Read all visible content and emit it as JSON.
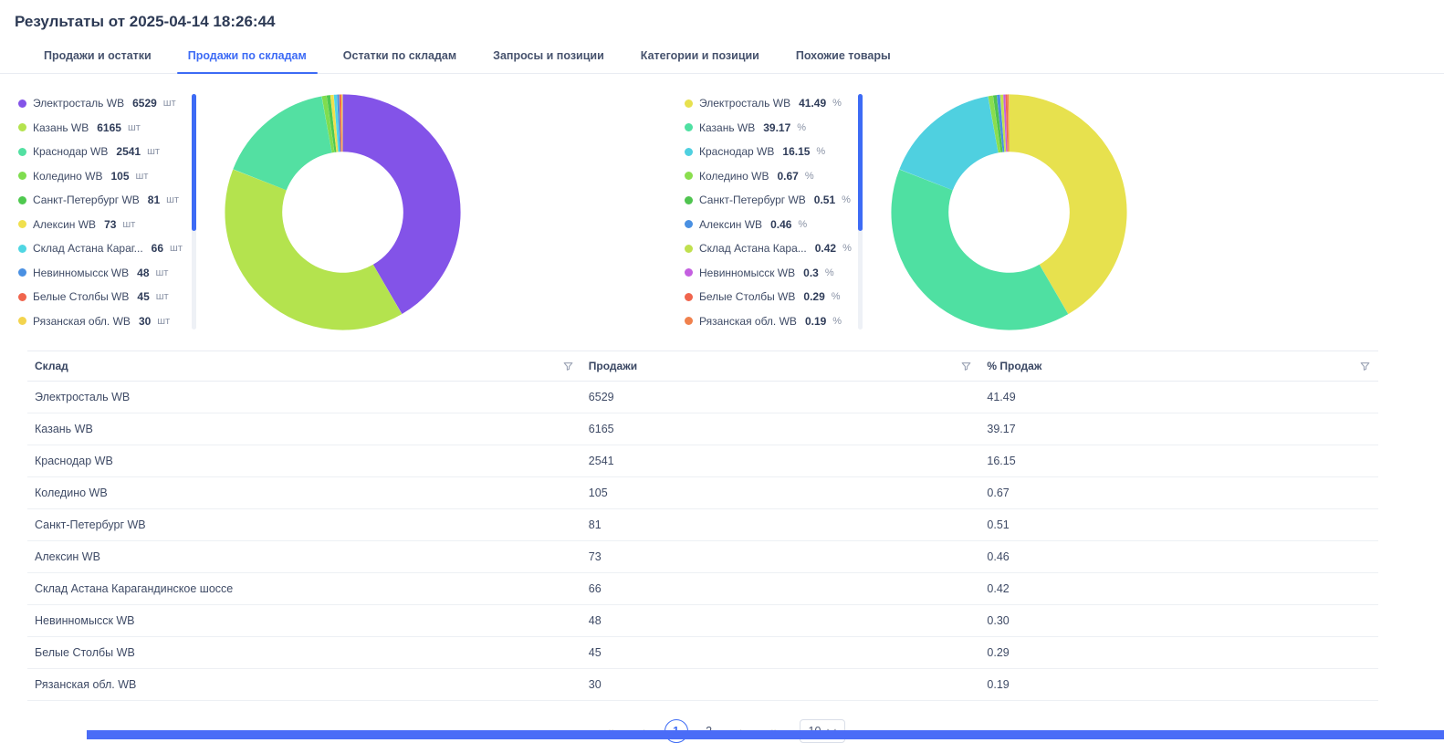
{
  "header": {
    "title": "Результаты от 2025-04-14 18:26:44"
  },
  "tabs": [
    {
      "label": "Продажи и остатки",
      "active": false
    },
    {
      "label": "Продажи по складам",
      "active": true
    },
    {
      "label": "Остатки по складам",
      "active": false
    },
    {
      "label": "Запросы и позиции",
      "active": false
    },
    {
      "label": "Категории и позиции",
      "active": false
    },
    {
      "label": "Похожие товары",
      "active": false
    }
  ],
  "colors": {
    "accent": "#3d6bf5",
    "footer_bar": "#4a6cf7"
  },
  "chart_data": [
    {
      "type": "pie",
      "variant": "donut",
      "legend_position": "left",
      "unit": "шт",
      "items": [
        {
          "label": "Электросталь WB",
          "display": "6529",
          "value": 6529,
          "color": "#8353e8"
        },
        {
          "label": "Казань WB",
          "display": "6165",
          "value": 6165,
          "color": "#b4e34e"
        },
        {
          "label": "Краснодар WB",
          "display": "2541",
          "value": 2541,
          "color": "#53e0a2"
        },
        {
          "label": "Коледино WB",
          "display": "105",
          "value": 105,
          "color": "#7fdd4f"
        },
        {
          "label": "Санкт-Петербург WB",
          "display": "81",
          "value": 81,
          "color": "#4fc94f"
        },
        {
          "label": "Алексин WB",
          "display": "73",
          "value": 73,
          "color": "#f0e04e"
        },
        {
          "label": "Склад Астана Караг...",
          "display": "66",
          "value": 66,
          "color": "#4fd6e3"
        },
        {
          "label": "Невинномысск WB",
          "display": "48",
          "value": 48,
          "color": "#4a90e2"
        },
        {
          "label": "Белые Столбы WB",
          "display": "45",
          "value": 45,
          "color": "#f0654d"
        },
        {
          "label": "Рязанская обл. WB",
          "display": "30",
          "value": 30,
          "color": "#f3d44e"
        }
      ]
    },
    {
      "type": "pie",
      "variant": "donut",
      "legend_position": "left",
      "unit": "%",
      "items": [
        {
          "label": "Электросталь WB",
          "display": "41.49",
          "value": 41.49,
          "color": "#e7e14e"
        },
        {
          "label": "Казань WB",
          "display": "39.17",
          "value": 39.17,
          "color": "#4fe0a2"
        },
        {
          "label": "Краснодар WB",
          "display": "16.15",
          "value": 16.15,
          "color": "#4fd0e0"
        },
        {
          "label": "Коледино WB",
          "display": "0.67",
          "value": 0.67,
          "color": "#8ade4e"
        },
        {
          "label": "Санкт-Петербург WB",
          "display": "0.51",
          "value": 0.51,
          "color": "#4fc44f"
        },
        {
          "label": "Алексин WB",
          "display": "0.46",
          "value": 0.46,
          "color": "#4a90e2"
        },
        {
          "label": "Склад Астана Кара...",
          "display": "0.42",
          "value": 0.42,
          "color": "#c0e04e"
        },
        {
          "label": "Невинномысск WB",
          "display": "0.3",
          "value": 0.3,
          "color": "#c45fe0"
        },
        {
          "label": "Белые Столбы WB",
          "display": "0.29",
          "value": 0.29,
          "color": "#f0654d"
        },
        {
          "label": "Рязанская обл. WB",
          "display": "0.19",
          "value": 0.19,
          "color": "#f0814d"
        }
      ]
    }
  ],
  "table": {
    "columns": [
      "Склад",
      "Продажи",
      "% Продаж"
    ],
    "rows": [
      [
        "Электросталь WB",
        "6529",
        "41.49"
      ],
      [
        "Казань WB",
        "6165",
        "39.17"
      ],
      [
        "Краснодар WB",
        "2541",
        "16.15"
      ],
      [
        "Коледино WB",
        "105",
        "0.67"
      ],
      [
        "Санкт-Петербург WB",
        "81",
        "0.51"
      ],
      [
        "Алексин WB",
        "73",
        "0.46"
      ],
      [
        "Склад Астана Карагандинское шоссе",
        "66",
        "0.42"
      ],
      [
        "Невинномысск WB",
        "48",
        "0.30"
      ],
      [
        "Белые Столбы WB",
        "45",
        "0.29"
      ],
      [
        "Рязанская обл. WB",
        "30",
        "0.19"
      ]
    ]
  },
  "pagination": {
    "first_label": "«",
    "prev_label": "‹",
    "pages": [
      "1",
      "2"
    ],
    "active_page": "1",
    "next_label": "›",
    "last_label": "»",
    "page_size": "10"
  }
}
